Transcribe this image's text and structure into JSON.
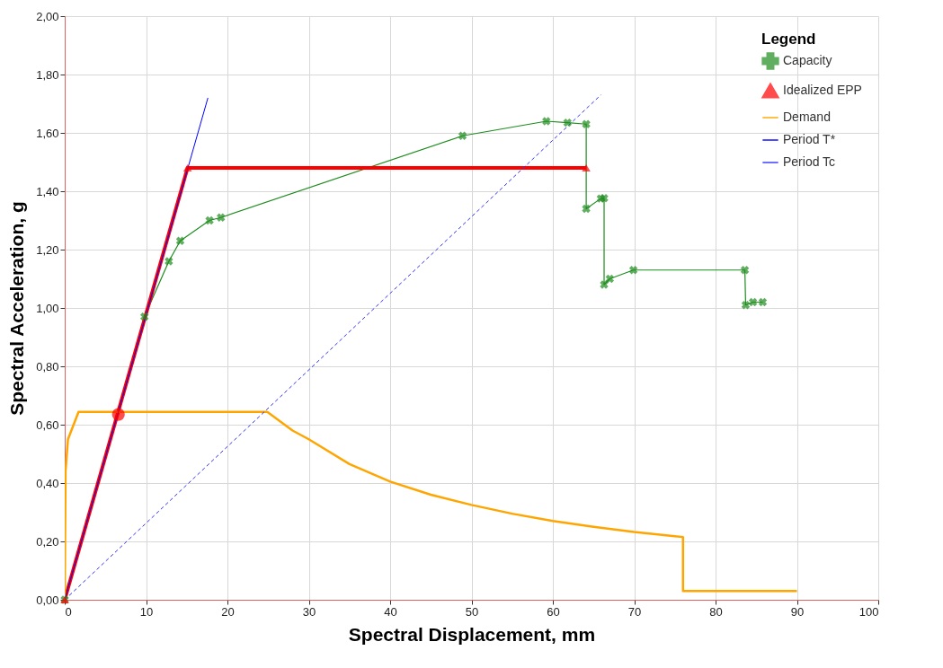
{
  "chart_data": {
    "type": "line",
    "xlabel": "Spectral Displacement, mm",
    "ylabel": "Spectral Acceleration, g",
    "legend_title": "Legend",
    "legend": "top right",
    "grid": true,
    "xlim": [
      0,
      100
    ],
    "xticks": [
      0,
      10,
      20,
      30,
      40,
      50,
      60,
      70,
      80,
      90,
      100
    ],
    "ylim": [
      0,
      2
    ],
    "yticks": [
      {
        "value": 0,
        "label": "0,00"
      },
      {
        "value": 0.2,
        "label": "0,20"
      },
      {
        "value": 0.4,
        "label": "0,40"
      },
      {
        "value": 0.6,
        "label": "0,60"
      },
      {
        "value": 0.8,
        "label": "0,80"
      },
      {
        "value": 1,
        "label": "1,00"
      },
      {
        "value": 1.2,
        "label": "1,20"
      },
      {
        "value": 1.4,
        "label": "1,40"
      },
      {
        "value": 1.6,
        "label": "1,60"
      },
      {
        "value": 1.8,
        "label": "1,80"
      },
      {
        "value": 2,
        "label": "2,00"
      }
    ],
    "series": [
      {
        "name": "Capacity",
        "color": "#1e8c1e",
        "marker": "cross",
        "line_style": "solid",
        "x": [
          0,
          9.8,
          12.8,
          14.2,
          17.8,
          19.2,
          48.9,
          59.2,
          61.8,
          64.1,
          64.1,
          65.9,
          66.3,
          66.3,
          67.0,
          69.9,
          83.6,
          83.7,
          84.6,
          85.8
        ],
        "values": [
          0,
          0.97,
          1.16,
          1.23,
          1.3,
          1.31,
          1.59,
          1.64,
          1.635,
          1.63,
          1.34,
          1.375,
          1.376,
          1.08,
          1.1,
          1.13,
          1.13,
          1.01,
          1.02,
          1.02
        ]
      },
      {
        "name": "Idealized EPP",
        "color": "#ff0000",
        "marker": "triangle",
        "line_style": "solid",
        "x": [
          0,
          15.1,
          64.1
        ],
        "values": [
          0,
          1.48,
          1.48
        ]
      },
      {
        "name": "Demand",
        "color": "#ffa500",
        "marker": "none",
        "line_style": "solid",
        "x": [
          0,
          0.1,
          0.4,
          1.7,
          24.9,
          28.0,
          30,
          35,
          40,
          45,
          50,
          55,
          60,
          65,
          70,
          75,
          76,
          76,
          90
        ],
        "values": [
          0,
          0.44,
          0.55,
          0.644,
          0.644,
          0.58,
          0.55,
          0.465,
          0.405,
          0.36,
          0.325,
          0.295,
          0.27,
          0.25,
          0.232,
          0.218,
          0.215,
          0.03,
          0.03
        ]
      },
      {
        "name": "Period T*",
        "color": "#0000ff",
        "marker": "none",
        "line_style": "solid",
        "x": [
          0,
          17.6
        ],
        "values": [
          0,
          1.72
        ]
      },
      {
        "name": "Period Tc",
        "color": "#3333ff",
        "marker": "none",
        "line_style": "dashed",
        "x": [
          0,
          65.9
        ],
        "values": [
          0,
          1.73
        ]
      },
      {
        "type": "scatter",
        "color": "#ff0000",
        "marker": "circle",
        "x": [
          6.6
        ],
        "values": [
          0.635
        ]
      }
    ]
  }
}
